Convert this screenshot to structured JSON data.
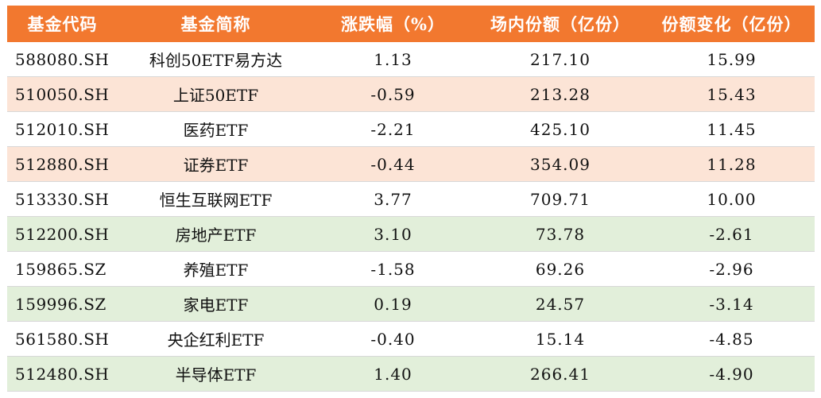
{
  "colors": {
    "header_bg": "#f2782f",
    "header_text": "#ffffff",
    "row_white": "#ffffff",
    "row_peach": "#fce4d6",
    "row_green": "#e2efda"
  },
  "headers": [
    "基金代码",
    "基金简称",
    "涨跌幅（%）",
    "场内份额（亿份）",
    "份额变化（亿份）"
  ],
  "rows": [
    {
      "code": "588080.SH",
      "name": "科创50ETF易方达",
      "change_pct": "1.13",
      "shares": "217.10",
      "share_change": "15.99",
      "tint": "white"
    },
    {
      "code": "510050.SH",
      "name": "上证50ETF",
      "change_pct": "-0.59",
      "shares": "213.28",
      "share_change": "15.43",
      "tint": "peach"
    },
    {
      "code": "512010.SH",
      "name": "医药ETF",
      "change_pct": "-2.21",
      "shares": "425.10",
      "share_change": "11.45",
      "tint": "white"
    },
    {
      "code": "512880.SH",
      "name": "证券ETF",
      "change_pct": "-0.44",
      "shares": "354.09",
      "share_change": "11.28",
      "tint": "peach"
    },
    {
      "code": "513330.SH",
      "name": "恒生互联网ETF",
      "change_pct": "3.77",
      "shares": "709.71",
      "share_change": "10.00",
      "tint": "white"
    },
    {
      "code": "512200.SH",
      "name": "房地产ETF",
      "change_pct": "3.10",
      "shares": "73.78",
      "share_change": "-2.61",
      "tint": "green"
    },
    {
      "code": "159865.SZ",
      "name": "养殖ETF",
      "change_pct": "-1.58",
      "shares": "69.26",
      "share_change": "-2.96",
      "tint": "white"
    },
    {
      "code": "159996.SZ",
      "name": "家电ETF",
      "change_pct": "0.19",
      "shares": "24.57",
      "share_change": "-3.14",
      "tint": "green"
    },
    {
      "code": "561580.SH",
      "name": "央企红利ETF",
      "change_pct": "-0.40",
      "shares": "15.14",
      "share_change": "-4.85",
      "tint": "white"
    },
    {
      "code": "512480.SH",
      "name": "半导体ETF",
      "change_pct": "1.40",
      "shares": "266.41",
      "share_change": "-4.90",
      "tint": "green"
    }
  ]
}
